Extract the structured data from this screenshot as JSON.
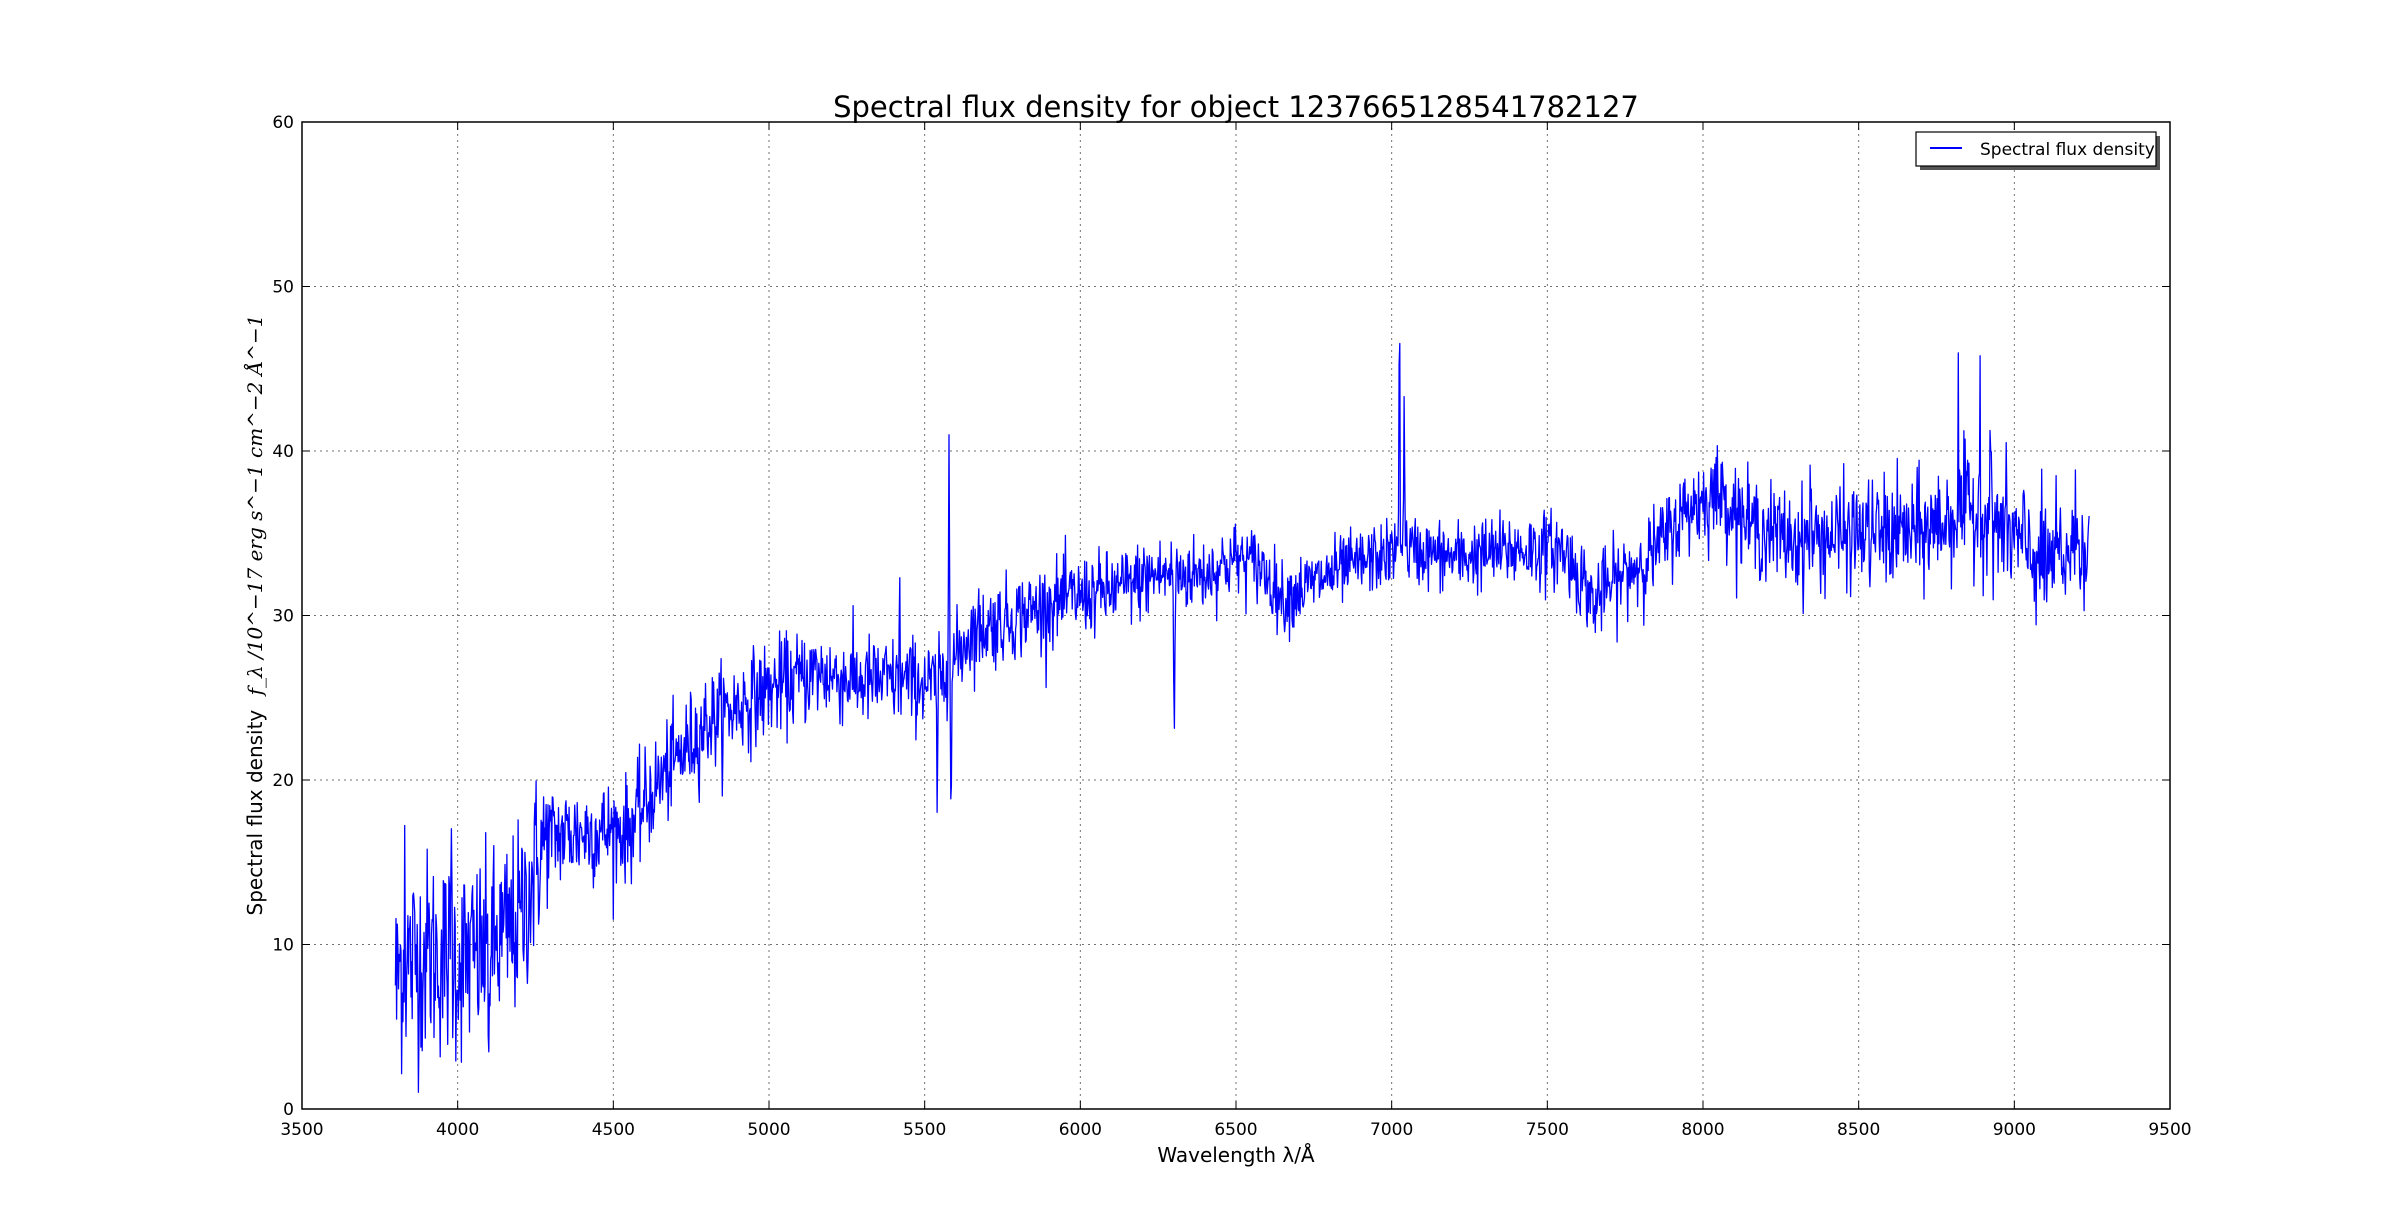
{
  "chart_data": {
    "type": "line",
    "title": "Spectral flux density for object 1237665128541782127",
    "xlabel": "Wavelength λ/Å",
    "ylabel_prefix": "Spectral flux density",
    "ylabel_math": "f_λ /10^−17 erg s^−1 cm^−2 Å^−1",
    "xlim": [
      3500,
      9500
    ],
    "ylim": [
      0,
      60
    ],
    "xticks": [
      3500,
      4000,
      4500,
      5000,
      5500,
      6000,
      6500,
      7000,
      7500,
      8000,
      8500,
      9000,
      9500
    ],
    "yticks": [
      0,
      10,
      20,
      30,
      40,
      50,
      60
    ],
    "grid": true,
    "legend_position": "top-right",
    "line_color": "#0000ff",
    "series": [
      {
        "name": "Spectral flux density",
        "approx_spectrum": {
          "x_range": [
            3800,
            9240
          ],
          "continuum_knots": [
            [
              3800,
              8.5
            ],
            [
              3900,
              9.5
            ],
            [
              4000,
              9.0
            ],
            [
              4100,
              9.5
            ],
            [
              4200,
              11.5
            ],
            [
              4280,
              16.5
            ],
            [
              4400,
              16.8
            ],
            [
              4550,
              17.0
            ],
            [
              4650,
              20.0
            ],
            [
              4800,
              23.5
            ],
            [
              4900,
              24.5
            ],
            [
              5000,
              25.5
            ],
            [
              5150,
              26.5
            ],
            [
              5300,
              26.0
            ],
            [
              5450,
              26.0
            ],
            [
              5550,
              25.8
            ],
            [
              5650,
              29.0
            ],
            [
              5800,
              30.0
            ],
            [
              5950,
              31.0
            ],
            [
              6100,
              31.5
            ],
            [
              6250,
              32.5
            ],
            [
              6400,
              32.5
            ],
            [
              6500,
              33.5
            ],
            [
              6580,
              33.0
            ],
            [
              6650,
              31.0
            ],
            [
              6800,
              32.5
            ],
            [
              6950,
              33.5
            ],
            [
              7050,
              34.0
            ],
            [
              7200,
              33.5
            ],
            [
              7400,
              34.0
            ],
            [
              7550,
              34.0
            ],
            [
              7650,
              31.0
            ],
            [
              7750,
              32.5
            ],
            [
              7850,
              34.0
            ],
            [
              7950,
              36.5
            ],
            [
              8050,
              37.5
            ],
            [
              8150,
              35.5
            ],
            [
              8300,
              34.5
            ],
            [
              8500,
              35.0
            ],
            [
              8700,
              35.0
            ],
            [
              8850,
              36.5
            ],
            [
              8950,
              35.5
            ],
            [
              9100,
              33.0
            ],
            [
              9240,
              35.0
            ]
          ],
          "noise_knots": [
            [
              3800,
              3.2
            ],
            [
              4250,
              2.8
            ],
            [
              4300,
              1.6
            ],
            [
              4700,
              1.5
            ],
            [
              5600,
              1.3
            ],
            [
              7000,
              1.0
            ],
            [
              7900,
              1.3
            ],
            [
              8300,
              1.5
            ],
            [
              9240,
              2.0
            ]
          ],
          "features": [
            {
              "x": 5578,
              "y": 44.3,
              "width": 3
            },
            {
              "x": 5585,
              "y": 16.3,
              "width": 3
            },
            {
              "x": 5540,
              "y": 19.0,
              "width": 3
            },
            {
              "x": 6302,
              "y": 23.0,
              "width": 4
            },
            {
              "x": 7025,
              "y": 51.6,
              "width": 3
            },
            {
              "x": 7040,
              "y": 44.2,
              "width": 3
            },
            {
              "x": 8890,
              "y": 45.9,
              "width": 2
            },
            {
              "x": 8820,
              "y": 43.0,
              "width": 2
            },
            {
              "x": 8345,
              "y": 40.7,
              "width": 2
            },
            {
              "x": 8922,
              "y": 42.2,
              "width": 2
            },
            {
              "x": 7650,
              "y": 29.0,
              "width": 3
            },
            {
              "x": 9155,
              "y": 29.0,
              "width": 3
            },
            {
              "x": 3805,
              "y": 5.6,
              "width": 2
            },
            {
              "x": 3830,
              "y": 16.3,
              "width": 2
            },
            {
              "x": 3980,
              "y": 17.6,
              "width": 2
            },
            {
              "x": 4100,
              "y": 3.8,
              "width": 2
            },
            {
              "x": 5420,
              "y": 32.2,
              "width": 2
            }
          ]
        }
      }
    ]
  }
}
